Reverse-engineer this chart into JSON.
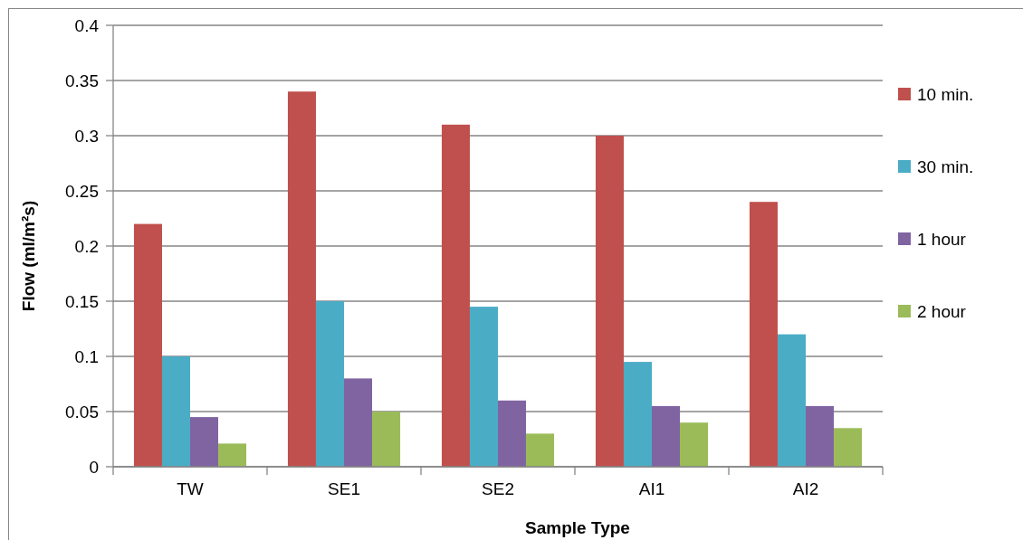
{
  "chart_data": {
    "type": "bar",
    "xlabel": "Sample Type",
    "ylabel": "Flow (ml/m²s)",
    "categories": [
      "TW",
      "SE1",
      "SE2",
      "AI1",
      "AI2"
    ],
    "series": [
      {
        "name": "10 min.",
        "color": "#c0504d",
        "values": [
          0.22,
          0.34,
          0.31,
          0.3,
          0.24
        ]
      },
      {
        "name": "30 min.",
        "color": "#4bacc6",
        "values": [
          0.1,
          0.15,
          0.145,
          0.095,
          0.12
        ]
      },
      {
        "name": "1 hour",
        "color": "#8064a2",
        "values": [
          0.045,
          0.08,
          0.06,
          0.055,
          0.055
        ]
      },
      {
        "name": "2 hour",
        "color": "#9bbb59",
        "values": [
          0.021,
          0.05,
          0.03,
          0.04,
          0.035
        ]
      }
    ],
    "ylim": [
      0,
      0.4
    ],
    "yticks": [
      0,
      0.05,
      0.1,
      0.15,
      0.2,
      0.25,
      0.3,
      0.35,
      0.4
    ],
    "grid": "y",
    "legend": "right"
  }
}
